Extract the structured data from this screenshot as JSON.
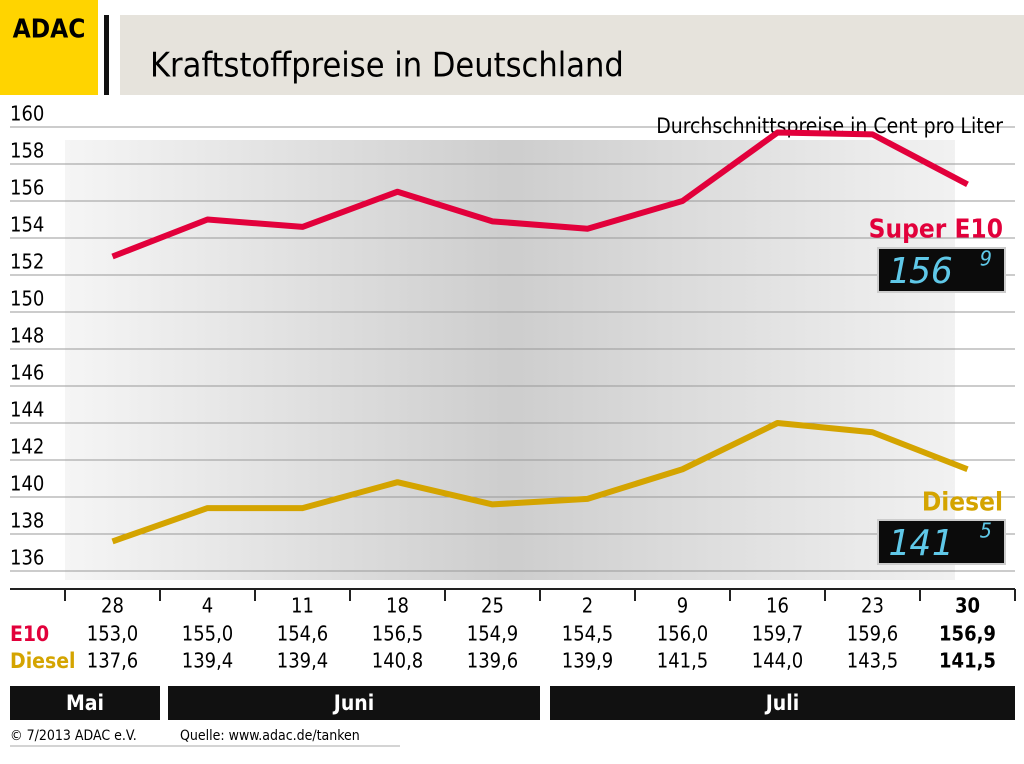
{
  "brand": "ADAC",
  "chart_data": {
    "type": "line",
    "title": "Kraftstoffpreise in Deutschland",
    "subtitle": "Durchschnittspreise in Cent pro Liter",
    "categories": [
      "28",
      "4",
      "11",
      "18",
      "25",
      "2",
      "9",
      "16",
      "23",
      "30"
    ],
    "months": [
      "Mai",
      "Juni",
      "Juli"
    ],
    "series": [
      {
        "name": "E10",
        "legend": "Super E10",
        "color": "#e2003b",
        "values": [
          153.0,
          155.0,
          154.6,
          156.5,
          154.9,
          154.5,
          156.0,
          159.7,
          159.6,
          156.9
        ],
        "value_labels": [
          "153,0",
          "155,0",
          "154,6",
          "156,5",
          "154,9",
          "154,5",
          "156,0",
          "159,7",
          "159,6",
          "156,9"
        ],
        "display": [
          "156",
          "9"
        ]
      },
      {
        "name": "Diesel",
        "legend": "Diesel",
        "color": "#d4a400",
        "values": [
          137.6,
          139.4,
          139.4,
          140.8,
          139.6,
          139.9,
          141.5,
          144.0,
          143.5,
          141.5
        ],
        "value_labels": [
          "137,6",
          "139,4",
          "139,4",
          "140,8",
          "139,6",
          "139,9",
          "141,5",
          "144,0",
          "143,5",
          "141,5"
        ],
        "display": [
          "141",
          "5"
        ]
      }
    ],
    "ylim": [
      136,
      160
    ],
    "yticks": [
      136,
      138,
      140,
      142,
      144,
      146,
      148,
      150,
      152,
      154,
      156,
      158,
      160
    ],
    "grid": true
  },
  "footer": {
    "copyright": "© 7/2013  ADAC e.V.",
    "source": "Quelle: www.adac.de/tanken"
  }
}
